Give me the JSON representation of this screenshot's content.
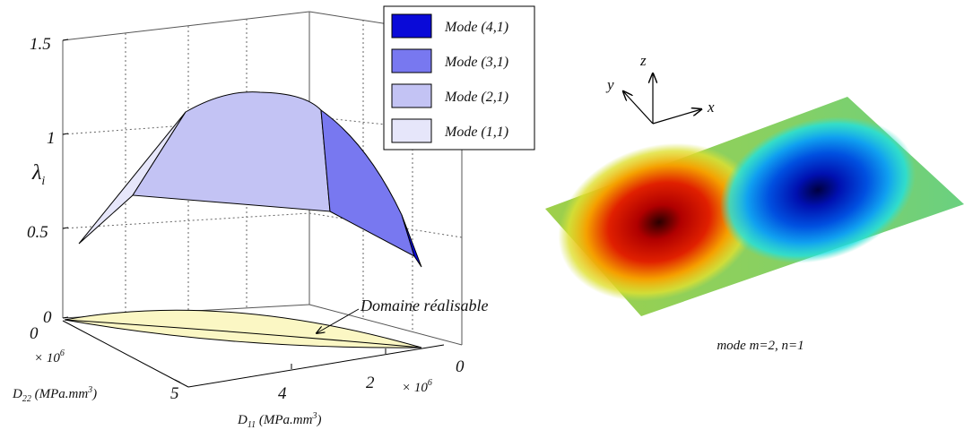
{
  "left_plot": {
    "z_axis": {
      "label": "λ",
      "label_sub": "i",
      "ticks": [
        "1.5",
        "1",
        "0.5",
        "0"
      ],
      "range": [
        0,
        1.5
      ]
    },
    "d22_axis": {
      "label": "D",
      "label_sub": "22",
      "label_unit": " (MPa.mm",
      "label_sup": "3",
      "label_close": ")",
      "ticks": [
        "0",
        "5"
      ],
      "multiplier": "× 10",
      "multiplier_exp": "6"
    },
    "d11_axis": {
      "label": "D",
      "label_sub": "11",
      "label_unit": " (MPa.mm",
      "label_sup": "3",
      "label_close": ")",
      "ticks": [
        "4",
        "2",
        "0"
      ],
      "multiplier": "× 10",
      "multiplier_exp": "6"
    },
    "legend": [
      {
        "label": "Mode (4,1)",
        "color": "#0a0ad8"
      },
      {
        "label": "Mode (3,1)",
        "color": "#7878f0"
      },
      {
        "label": "Mode (2,1)",
        "color": "#c3c3f4"
      },
      {
        "label": "Mode (1,1)",
        "color": "#e6e6fa"
      }
    ],
    "annotation": "Domaine réalisable",
    "domain_fill": "#fbf7c4"
  },
  "right_plot": {
    "axes": {
      "x": "x",
      "y": "y",
      "z": "z"
    },
    "caption": "mode m=2, n=1"
  }
}
